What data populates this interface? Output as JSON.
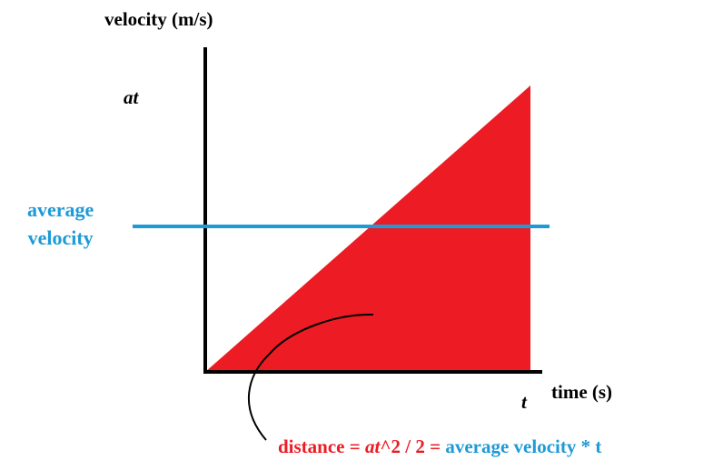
{
  "labels": {
    "y_axis": "velocity (m/s)",
    "y_tick": "at",
    "avg_line_1": "average",
    "avg_line_2": "velocity",
    "x_axis": "time (s)",
    "x_tick": "t"
  },
  "formula": {
    "part1": "distance = ",
    "part2": "at",
    "part3": "^2 / 2 = ",
    "part4": "average velocity * t"
  },
  "colors": {
    "area": "#ed1c24",
    "average_line": "#1e9ad6",
    "axes": "#000000",
    "formula_red": "#ed1c24",
    "formula_blue": "#1e9ad6"
  },
  "chart_data": {
    "type": "area",
    "x": [
      0,
      1
    ],
    "y": [
      0,
      1
    ],
    "average": 0.5,
    "xlabel": "time (s)",
    "ylabel": "velocity (m/s)",
    "xlim": [
      0,
      1
    ],
    "ylim": [
      0,
      1
    ]
  }
}
